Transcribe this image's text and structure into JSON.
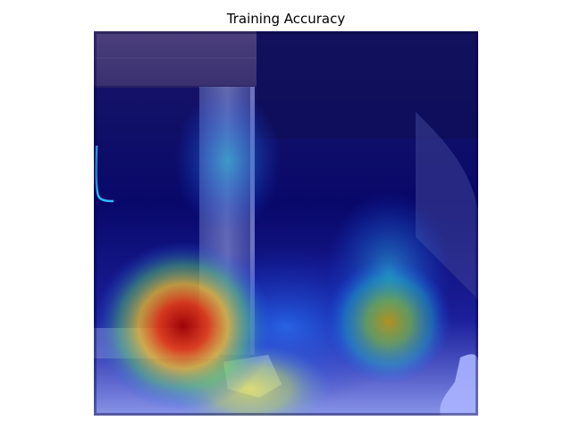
{
  "figure": {
    "title": "Training Accuracy"
  },
  "image": {
    "description_tag": "attention-heatmap-overlay",
    "colormap": "jet",
    "colors": {
      "low": "#00007f",
      "mid_low": "#0033ff",
      "mid": "#33cc66",
      "mid_high": "#ffd21a",
      "high": "#cc1100"
    }
  }
}
